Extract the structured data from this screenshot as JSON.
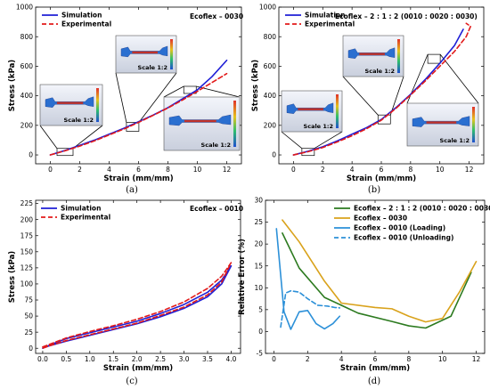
{
  "colors": {
    "simulation": "#1f1fd6",
    "experimental": "#e21a1a",
    "ecoflex_2112": "#2c7a1f",
    "ecoflex_0030": "#d9a21b",
    "ecoflex_0010": "#2c90d8"
  },
  "chart_data": [
    {
      "id": "a",
      "type": "line",
      "caption": "(a)",
      "material_label": "Ecoflex – 0030",
      "xlabel": "Strain (mm/mm)",
      "ylabel": "Stress (kPa)",
      "xlim": [
        -1,
        13
      ],
      "ylim": [
        -60,
        1000
      ],
      "xticks": [
        0,
        2,
        4,
        6,
        8,
        10,
        12
      ],
      "yticks": [
        0,
        200,
        400,
        600,
        800,
        1000
      ],
      "legend": [
        "Simulation",
        "Experimental"
      ],
      "scale_labels": [
        "Scale 1:2",
        "Scale 1:2",
        "Scale 1:2"
      ],
      "series": [
        {
          "name": "Simulation",
          "style": "solid",
          "color_key": "simulation",
          "points": [
            [
              0,
              0
            ],
            [
              1,
              30
            ],
            [
              2,
              65
            ],
            [
              3,
              100
            ],
            [
              4,
              140
            ],
            [
              5,
              180
            ],
            [
              6,
              225
            ],
            [
              7,
              270
            ],
            [
              8,
              320
            ],
            [
              9,
              380
            ],
            [
              10,
              440
            ],
            [
              11,
              530
            ],
            [
              12,
              640
            ]
          ]
        },
        {
          "name": "Experimental",
          "style": "dashed",
          "color_key": "experimental",
          "points": [
            [
              0,
              0
            ],
            [
              1,
              28
            ],
            [
              2,
              60
            ],
            [
              3,
              95
            ],
            [
              4,
              135
            ],
            [
              5,
              175
            ],
            [
              6,
              220
            ],
            [
              7,
              268
            ],
            [
              8,
              318
            ],
            [
              9,
              372
            ],
            [
              10,
              430
            ],
            [
              11,
              490
            ],
            [
              12,
              550
            ]
          ]
        }
      ]
    },
    {
      "id": "b",
      "type": "line",
      "caption": "(b)",
      "material_label": "Ecoflex – 2 : 1 : 2 (0010 : 0020 : 0030)",
      "xlabel": "Strain (mm/mm)",
      "ylabel": "Stress (kPa)",
      "xlim": [
        -1,
        13
      ],
      "ylim": [
        -60,
        1000
      ],
      "xticks": [
        0,
        2,
        4,
        6,
        8,
        10,
        12
      ],
      "yticks": [
        0,
        200,
        400,
        600,
        800,
        1000
      ],
      "legend": [
        "Simulation",
        "Experimental"
      ],
      "scale_labels": [
        "Scale 1:2",
        "Scale 1:2",
        "Scale 1:2"
      ],
      "series": [
        {
          "name": "Simulation",
          "style": "solid",
          "color_key": "simulation",
          "points": [
            [
              0,
              0
            ],
            [
              1,
              25
            ],
            [
              2,
              55
            ],
            [
              3,
              95
            ],
            [
              4,
              140
            ],
            [
              5,
              185
            ],
            [
              6,
              240
            ],
            [
              7,
              320
            ],
            [
              8,
              410
            ],
            [
              9,
              510
            ],
            [
              10,
              620
            ],
            [
              11,
              740
            ],
            [
              11.6,
              850
            ]
          ]
        },
        {
          "name": "Experimental",
          "style": "dashed",
          "color_key": "experimental",
          "points": [
            [
              0,
              0
            ],
            [
              1,
              22
            ],
            [
              2,
              50
            ],
            [
              3,
              88
            ],
            [
              4,
              130
            ],
            [
              5,
              178
            ],
            [
              6,
              235
            ],
            [
              7,
              315
            ],
            [
              8,
              405
            ],
            [
              9,
              500
            ],
            [
              10,
              600
            ],
            [
              11,
              700
            ],
            [
              11.8,
              800
            ],
            [
              12.1,
              870
            ],
            [
              11.8,
              890
            ]
          ]
        }
      ]
    },
    {
      "id": "c",
      "type": "line",
      "caption": "(c)",
      "material_label": "Ecoflex – 0010",
      "xlabel": "Strain (mm/mm)",
      "ylabel": "Stress (kPa)",
      "xlim": [
        -0.15,
        4.2
      ],
      "ylim": [
        -8,
        230
      ],
      "xticks": [
        0.0,
        0.5,
        1.0,
        1.5,
        2.0,
        2.5,
        3.0,
        3.5,
        4.0
      ],
      "yticks": [
        0,
        25,
        50,
        75,
        100,
        125,
        150,
        175,
        200,
        225
      ],
      "legend": [
        "Simulation",
        "Experimental"
      ],
      "series": [
        {
          "name": "Simulation",
          "style": "solid",
          "color_key": "simulation",
          "points": [
            [
              0.0,
              0
            ],
            [
              0.25,
              8
            ],
            [
              0.5,
              15
            ],
            [
              1.0,
              24
            ],
            [
              1.5,
              33
            ],
            [
              2.0,
              42
            ],
            [
              2.5,
              54
            ],
            [
              3.0,
              68
            ],
            [
              3.5,
              87
            ],
            [
              3.8,
              106
            ],
            [
              4.0,
              128
            ],
            [
              3.8,
              100
            ],
            [
              3.5,
              80
            ],
            [
              3.0,
              62
            ],
            [
              2.5,
              49
            ],
            [
              2.0,
              38
            ],
            [
              1.5,
              29
            ],
            [
              1.0,
              20
            ],
            [
              0.5,
              11
            ],
            [
              0.1,
              3
            ],
            [
              0.0,
              0
            ]
          ]
        },
        {
          "name": "Experimental",
          "style": "dashed",
          "color_key": "experimental",
          "points": [
            [
              0.0,
              2
            ],
            [
              0.25,
              9
            ],
            [
              0.5,
              16
            ],
            [
              1.0,
              26
            ],
            [
              1.5,
              35
            ],
            [
              2.0,
              45
            ],
            [
              2.5,
              57
            ],
            [
              3.0,
              72
            ],
            [
              3.5,
              93
            ],
            [
              3.8,
              112
            ],
            [
              4.0,
              133
            ],
            [
              3.8,
              103
            ],
            [
              3.5,
              83
            ],
            [
              3.0,
              64
            ],
            [
              2.5,
              51
            ],
            [
              2.0,
              39
            ],
            [
              1.5,
              30
            ],
            [
              1.0,
              21
            ],
            [
              0.5,
              12
            ],
            [
              0.15,
              4
            ],
            [
              0.0,
              0
            ]
          ]
        }
      ]
    },
    {
      "id": "d",
      "type": "line",
      "caption": "(d)",
      "xlabel": "Strain (mm/mm)",
      "ylabel": "Relative Error (%)",
      "xlim": [
        -0.5,
        12.5
      ],
      "ylim": [
        -5,
        30
      ],
      "xticks": [
        0,
        2,
        4,
        6,
        8,
        10,
        12
      ],
      "yticks": [
        -5,
        0,
        5,
        10,
        15,
        20,
        25,
        30
      ],
      "series": [
        {
          "name": "Ecoflex – 2 : 1 : 2 (0010 : 0020 : 0030)",
          "style": "solid",
          "color_key": "ecoflex_2112",
          "points": [
            [
              0.5,
              22.5
            ],
            [
              1.5,
              14.5
            ],
            [
              3,
              7.8
            ],
            [
              5,
              4.2
            ],
            [
              7,
              2.3
            ],
            [
              8,
              1.3
            ],
            [
              9,
              0.8
            ],
            [
              10.5,
              3.5
            ],
            [
              11.7,
              13.5
            ]
          ]
        },
        {
          "name": "Ecoflex – 0030",
          "style": "solid",
          "color_key": "ecoflex_0030",
          "points": [
            [
              0.5,
              25.5
            ],
            [
              1.5,
              20.5
            ],
            [
              3,
              11.5
            ],
            [
              4,
              6.5
            ],
            [
              6,
              5.5
            ],
            [
              7,
              5.2
            ],
            [
              8,
              3.5
            ],
            [
              9,
              2.2
            ],
            [
              10,
              3.0
            ],
            [
              11,
              9.0
            ],
            [
              12,
              16.0
            ]
          ]
        },
        {
          "name": "Ecoflex – 0010 (Loading)",
          "style": "solid",
          "color_key": "ecoflex_0010",
          "points": [
            [
              0.15,
              23.5
            ],
            [
              0.6,
              4.5
            ],
            [
              1.0,
              0.5
            ],
            [
              1.5,
              4.5
            ],
            [
              2.0,
              4.8
            ],
            [
              2.5,
              1.8
            ],
            [
              3.0,
              0.6
            ],
            [
              3.5,
              1.8
            ],
            [
              3.9,
              3.5
            ]
          ]
        },
        {
          "name": "Ecoflex – 0010 (Unloading)",
          "style": "dashed",
          "color_key": "ecoflex_0010",
          "points": [
            [
              0.4,
              1.0
            ],
            [
              0.7,
              8.8
            ],
            [
              1.0,
              9.3
            ],
            [
              1.5,
              9.0
            ],
            [
              2.0,
              7.5
            ],
            [
              2.6,
              6.0
            ],
            [
              3.2,
              5.8
            ],
            [
              3.6,
              5.5
            ],
            [
              3.9,
              5.4
            ]
          ]
        }
      ]
    }
  ]
}
